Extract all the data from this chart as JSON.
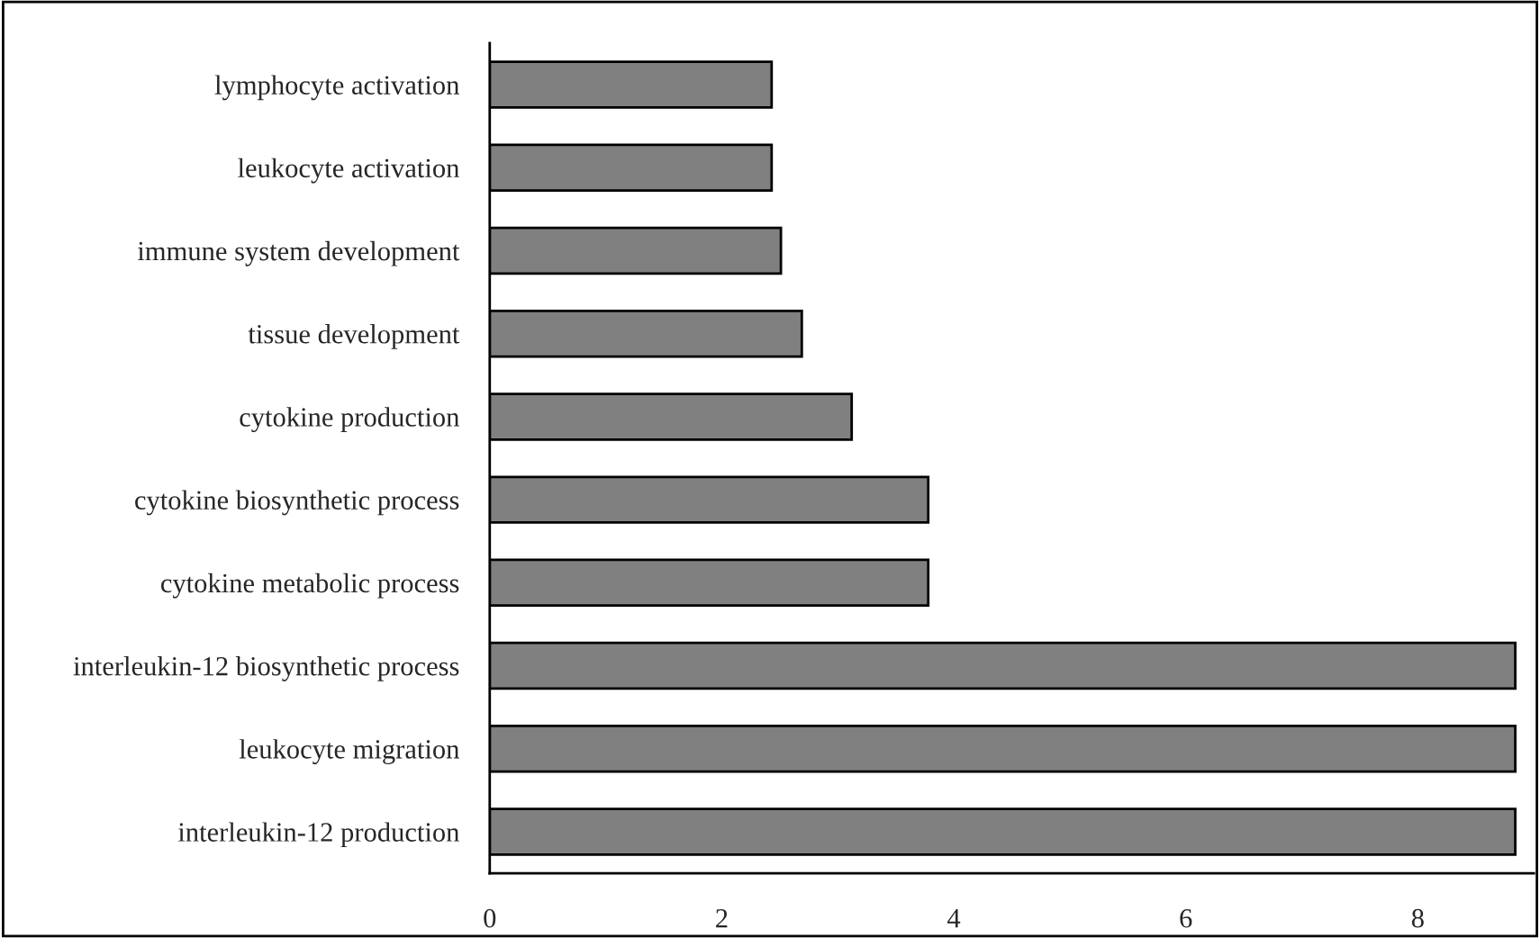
{
  "chart_data": {
    "type": "bar",
    "orientation": "horizontal",
    "categories": [
      "lymphocyte activation",
      "leukocyte activation",
      "immune system development",
      "tissue development",
      "cytokine production",
      "cytokine biosynthetic process",
      "cytokine metabolic process",
      "interleukin-12 biosynthetic process",
      "leukocyte migration",
      "interleukin-12 production"
    ],
    "values": [
      2.43,
      2.43,
      2.51,
      2.69,
      3.12,
      3.78,
      3.78,
      8.84,
      8.84,
      8.84
    ],
    "color": "#808080",
    "xlim": [
      0,
      9
    ],
    "xticks": [
      0,
      2,
      4,
      6,
      8
    ],
    "grid": false,
    "legend": false
  }
}
